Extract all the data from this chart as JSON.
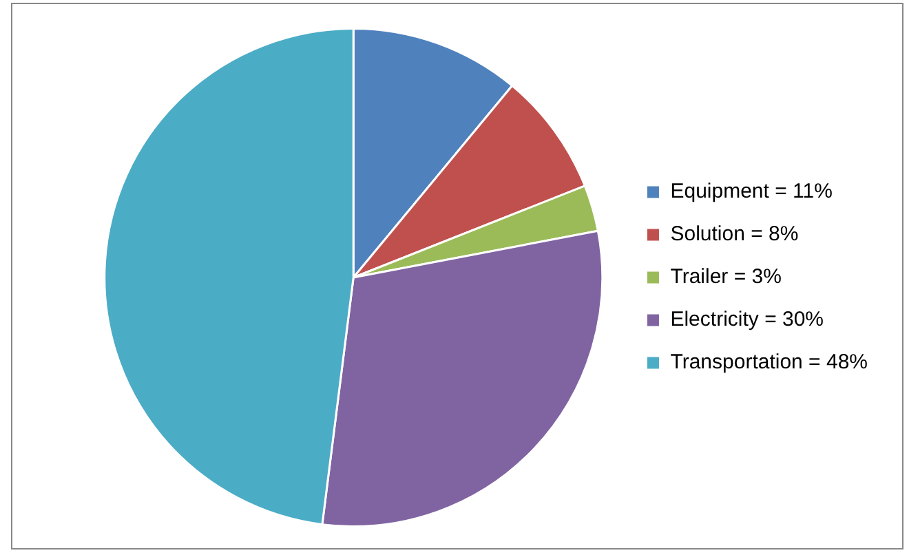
{
  "chart_data": {
    "type": "pie",
    "categories": [
      "Equipment = 11%",
      "Solution = 8%",
      "Trailer = 3%",
      "Electricity = 30%",
      "Transportation = 48%"
    ],
    "values": [
      11,
      8,
      3,
      30,
      48
    ],
    "colors": [
      "#4f81bd",
      "#c0504d",
      "#9bbb59",
      "#8064a2",
      "#4bacc6"
    ],
    "legend": "right"
  }
}
